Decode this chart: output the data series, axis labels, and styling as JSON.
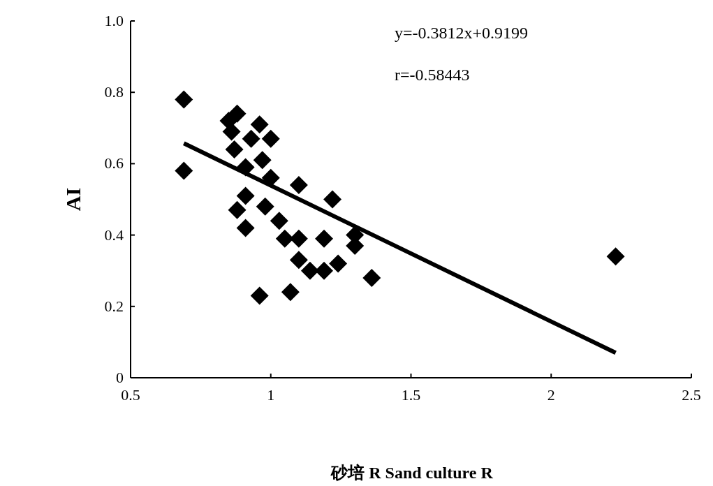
{
  "chart_data": {
    "type": "scatter",
    "xlabel": "砂培 R   Sand culture R",
    "ylabel": "AI",
    "annotations": [
      "y=-0.3812x+0.9199",
      "r=-0.58443"
    ],
    "xlim": [
      0.5,
      2.5
    ],
    "xticks": [
      0.5,
      1,
      1.5,
      2,
      2.5
    ],
    "ylim": [
      0,
      1
    ],
    "yticks": [
      0,
      0.2,
      0.4,
      0.6,
      0.8,
      {
        "value": 1,
        "label": "1.0"
      }
    ],
    "grid": false,
    "series": [
      {
        "type": "scatter",
        "color": "#000000",
        "marker": "diamond",
        "x": [
          0.69,
          0.69,
          0.88,
          0.85,
          0.96,
          1.0,
          0.86,
          0.87,
          0.93,
          0.97,
          0.91,
          1.0,
          0.91,
          0.88,
          0.91,
          0.98,
          1.1,
          1.22,
          1.03,
          1.05,
          1.1,
          1.1,
          1.14,
          1.19,
          1.24,
          1.19,
          1.3,
          1.3,
          1.36,
          1.07,
          0.96,
          2.23
        ],
        "values": [
          0.78,
          0.58,
          0.74,
          0.72,
          0.71,
          0.67,
          0.69,
          0.64,
          0.67,
          0.61,
          0.59,
          0.56,
          0.51,
          0.47,
          0.42,
          0.48,
          0.54,
          0.5,
          0.44,
          0.39,
          0.39,
          0.33,
          0.3,
          0.3,
          0.32,
          0.39,
          0.37,
          0.4,
          0.28,
          0.24,
          0.23,
          0.34
        ]
      },
      {
        "type": "line",
        "color": "#000000",
        "marker": "none",
        "x": [
          0.69,
          2.23
        ],
        "values": [
          0.657,
          0.07
        ]
      }
    ]
  }
}
